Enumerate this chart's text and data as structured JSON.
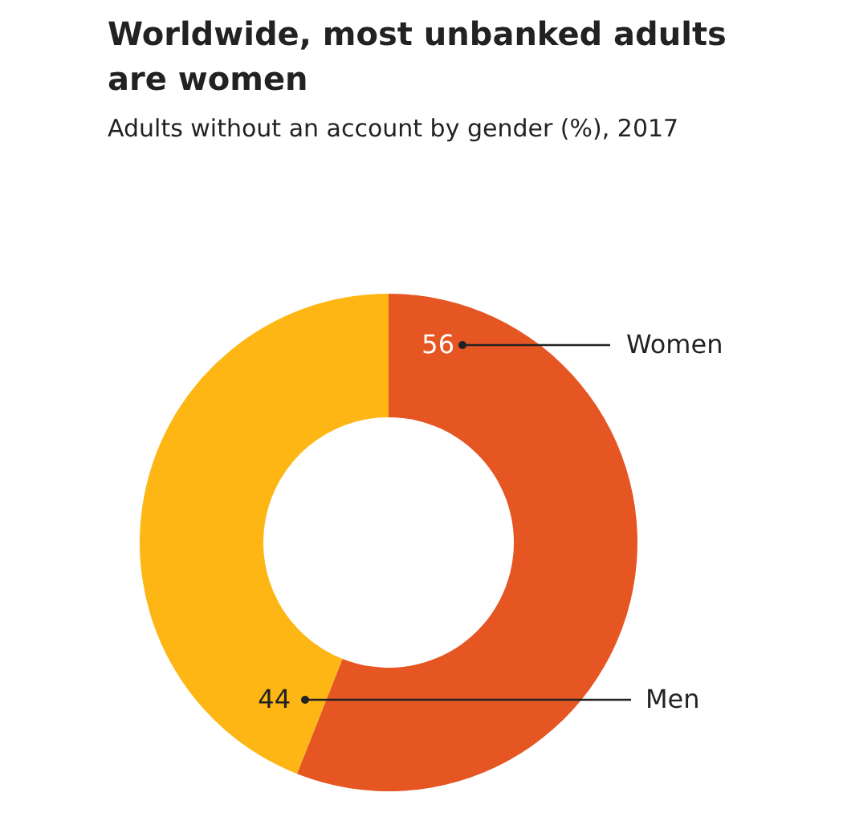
{
  "chart_data": {
    "type": "donut",
    "title": "Worldwide, most unbanked adults are women",
    "subtitle": "Adults without an account by gender (%), 2017",
    "categories": [
      "Women",
      "Men"
    ],
    "values": [
      56,
      44
    ],
    "colors": [
      "#e55623",
      "#fdb614"
    ],
    "data_labels": true,
    "legend": false
  }
}
